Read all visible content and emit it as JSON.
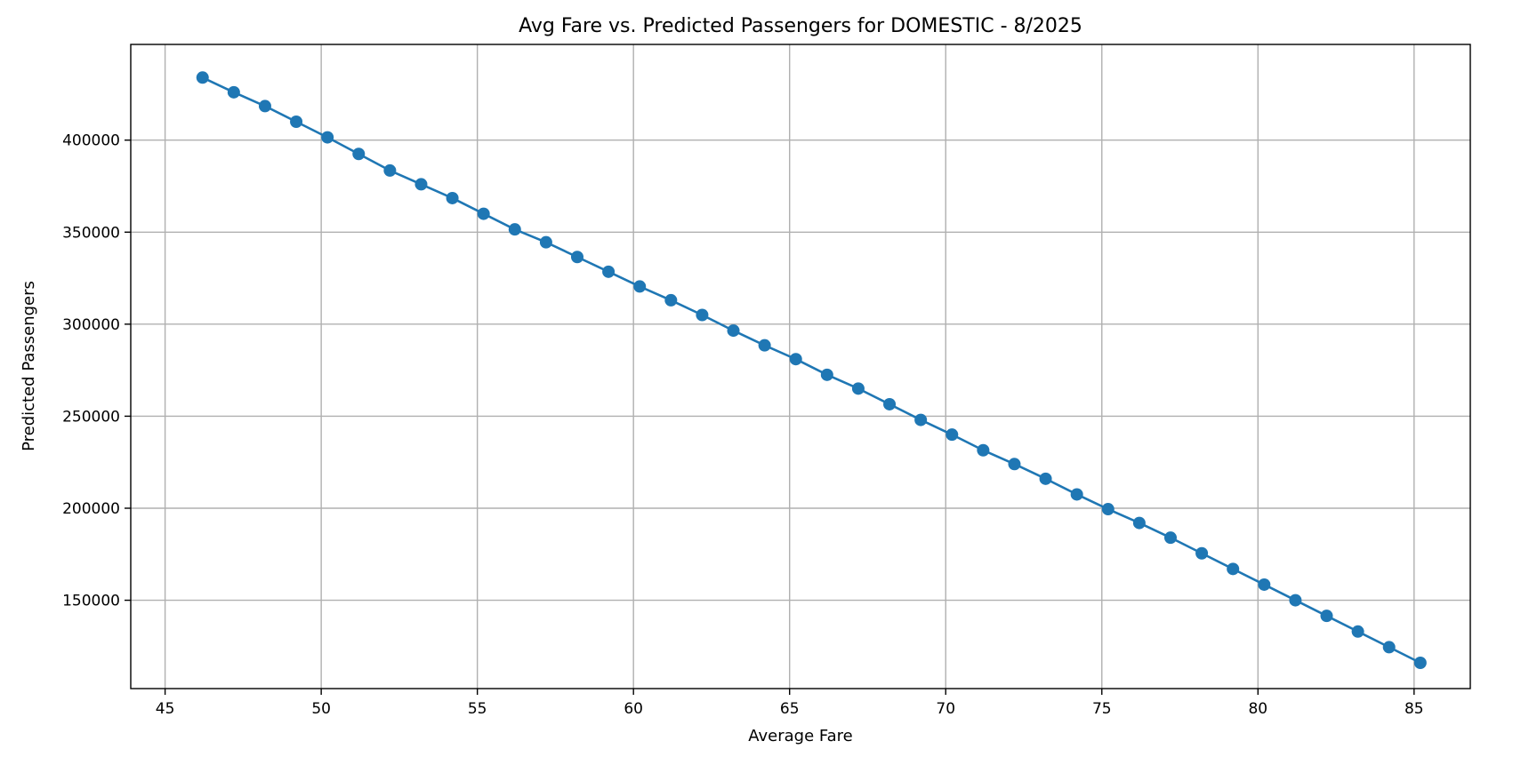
{
  "chart_data": {
    "type": "line",
    "title": "Avg Fare vs. Predicted Passengers for DOMESTIC - 8/2025",
    "xlabel": "Average Fare",
    "ylabel": "Predicted Passengers",
    "xlim": [
      43.9,
      86.8
    ],
    "ylim": [
      102000,
      452000
    ],
    "xticks": [
      45,
      50,
      55,
      60,
      65,
      70,
      75,
      80,
      85
    ],
    "yticks": [
      150000,
      200000,
      250000,
      300000,
      350000,
      400000
    ],
    "grid": true,
    "series_color": "#1f77b4",
    "x": [
      46.2,
      47.2,
      48.2,
      49.2,
      50.2,
      51.2,
      52.2,
      53.2,
      54.2,
      55.2,
      56.2,
      57.2,
      58.2,
      59.2,
      60.2,
      61.2,
      62.2,
      63.2,
      64.2,
      65.2,
      66.2,
      67.2,
      68.2,
      69.2,
      70.2,
      71.2,
      72.2,
      73.2,
      74.2,
      75.2,
      76.2,
      77.2,
      78.2,
      79.2,
      80.2,
      81.2,
      82.2,
      83.2,
      84.2,
      85.2
    ],
    "y": [
      434000,
      426000,
      418500,
      410000,
      401500,
      392500,
      383500,
      376000,
      368500,
      360000,
      351500,
      344500,
      336500,
      328500,
      320500,
      313000,
      305000,
      296500,
      288500,
      281000,
      272500,
      265000,
      256500,
      248000,
      240000,
      231500,
      224000,
      216000,
      207500,
      199500,
      192000,
      184000,
      175500,
      167000,
      158500,
      150000,
      141500,
      133000,
      124500,
      116000
    ]
  }
}
